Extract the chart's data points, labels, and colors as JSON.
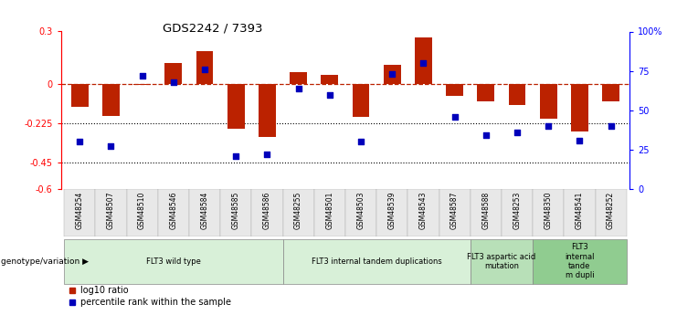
{
  "title": "GDS2242 / 7393",
  "samples": [
    "GSM48254",
    "GSM48507",
    "GSM48510",
    "GSM48546",
    "GSM48584",
    "GSM48585",
    "GSM48586",
    "GSM48255",
    "GSM48501",
    "GSM48503",
    "GSM48539",
    "GSM48543",
    "GSM48587",
    "GSM48588",
    "GSM48253",
    "GSM48350",
    "GSM48541",
    "GSM48252"
  ],
  "log10_ratio": [
    -0.13,
    -0.18,
    -0.005,
    0.12,
    0.19,
    -0.255,
    -0.3,
    0.07,
    0.05,
    -0.19,
    0.11,
    0.265,
    -0.07,
    -0.1,
    -0.12,
    -0.2,
    -0.27,
    -0.1
  ],
  "percentile_rank": [
    30,
    27,
    72,
    68,
    76,
    21,
    22,
    64,
    60,
    30,
    73,
    80,
    46,
    34,
    36,
    40,
    31,
    40
  ],
  "ylim_left": [
    -0.6,
    0.3
  ],
  "ylim_right": [
    0,
    100
  ],
  "yticks_left": [
    -0.6,
    -0.45,
    -0.225,
    0.0,
    0.3
  ],
  "yticks_right": [
    0,
    25,
    50,
    75,
    100
  ],
  "ytick_labels_left": [
    "-0.6",
    "-0.45",
    "-0.225",
    "0",
    "0.3"
  ],
  "ytick_labels_right": [
    "0",
    "25",
    "50",
    "75",
    "100%"
  ],
  "hline_y": 0.0,
  "dotted_lines": [
    -0.225,
    -0.45
  ],
  "bar_color": "#BB2200",
  "dot_color": "#0000BB",
  "groups": [
    {
      "label": "FLT3 wild type",
      "start": 0,
      "end": 6,
      "color": "#d8f0d8"
    },
    {
      "label": "FLT3 internal tandem duplications",
      "start": 7,
      "end": 12,
      "color": "#d8f0d8"
    },
    {
      "label": "FLT3 aspartic acid\nmutation",
      "start": 13,
      "end": 14,
      "color": "#b8e0b8"
    },
    {
      "label": "FLT3\ninternal\ntande\nm dupli",
      "start": 15,
      "end": 17,
      "color": "#90cc90"
    }
  ],
  "legend_red_label": "log10 ratio",
  "legend_blue_label": "percentile rank within the sample",
  "xlabel_genotype": "genotype/variation",
  "background_color": "#ffffff"
}
